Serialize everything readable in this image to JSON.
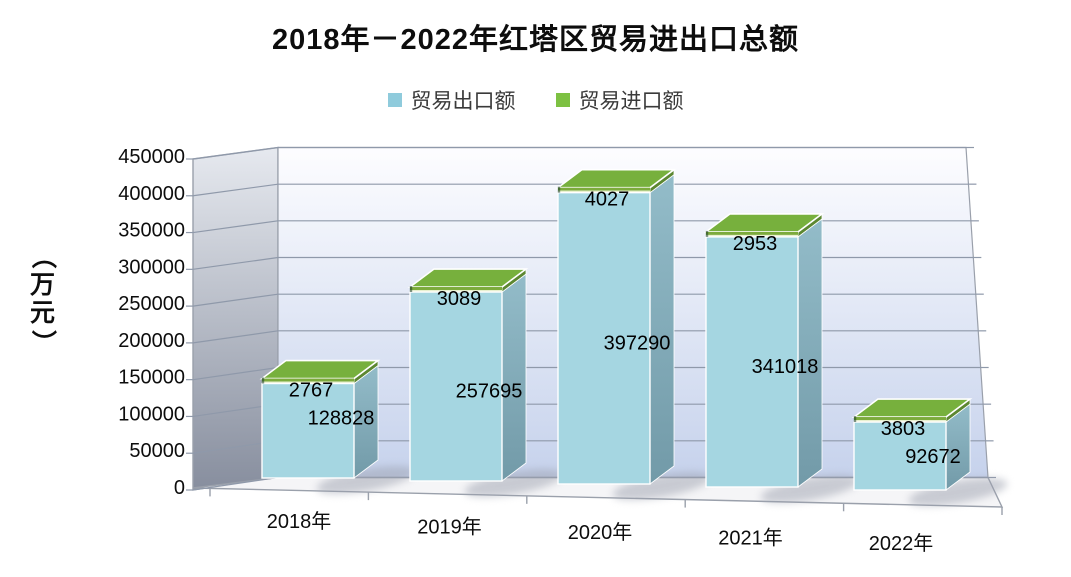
{
  "chart_data": {
    "type": "bar",
    "subtype": "3d-stacked-column",
    "title": "2018年－2022年红塔区贸易进出口总额",
    "ylabel": "（万元）",
    "xlabel": "",
    "categories": [
      "2018年",
      "2019年",
      "2020年",
      "2021年",
      "2022年"
    ],
    "series": [
      {
        "name": "贸易出口额",
        "color": "#8FCBDC",
        "values": [
          128828,
          257695,
          397290,
          341018,
          92672
        ]
      },
      {
        "name": "贸易进口额",
        "color": "#7DC142",
        "values": [
          2767,
          3089,
          4027,
          2953,
          3803
        ]
      }
    ],
    "ylim": [
      0,
      450000
    ],
    "ytick_step": 50000,
    "yticks": [
      "450000",
      "400000",
      "350000",
      "300000",
      "250000",
      "200000",
      "150000",
      "100000",
      "50000",
      "0"
    ],
    "legend_position": "top",
    "grid": true,
    "data_labels": true
  },
  "colors": {
    "export_front": "#A5D6E1",
    "export_side_top": "#93BCC9",
    "export_side_bottom": "#729AA8",
    "import_top": "#77B03D",
    "import_front": "#7CAB3C",
    "import_side": "#5C8731",
    "pale_line": "#E9F1CF",
    "back_wall_top": "#FDFDFF",
    "back_wall_bottom": "#C6D2EC",
    "left_wall_top": "#E6E9EF",
    "left_wall_bottom": "#878E9E",
    "floor": "#F5F5F7",
    "grid_line": "#8F99AA",
    "wall_edge": "#9AA0AB",
    "shadow": "#9CA1AF",
    "label_text": "#000000"
  }
}
